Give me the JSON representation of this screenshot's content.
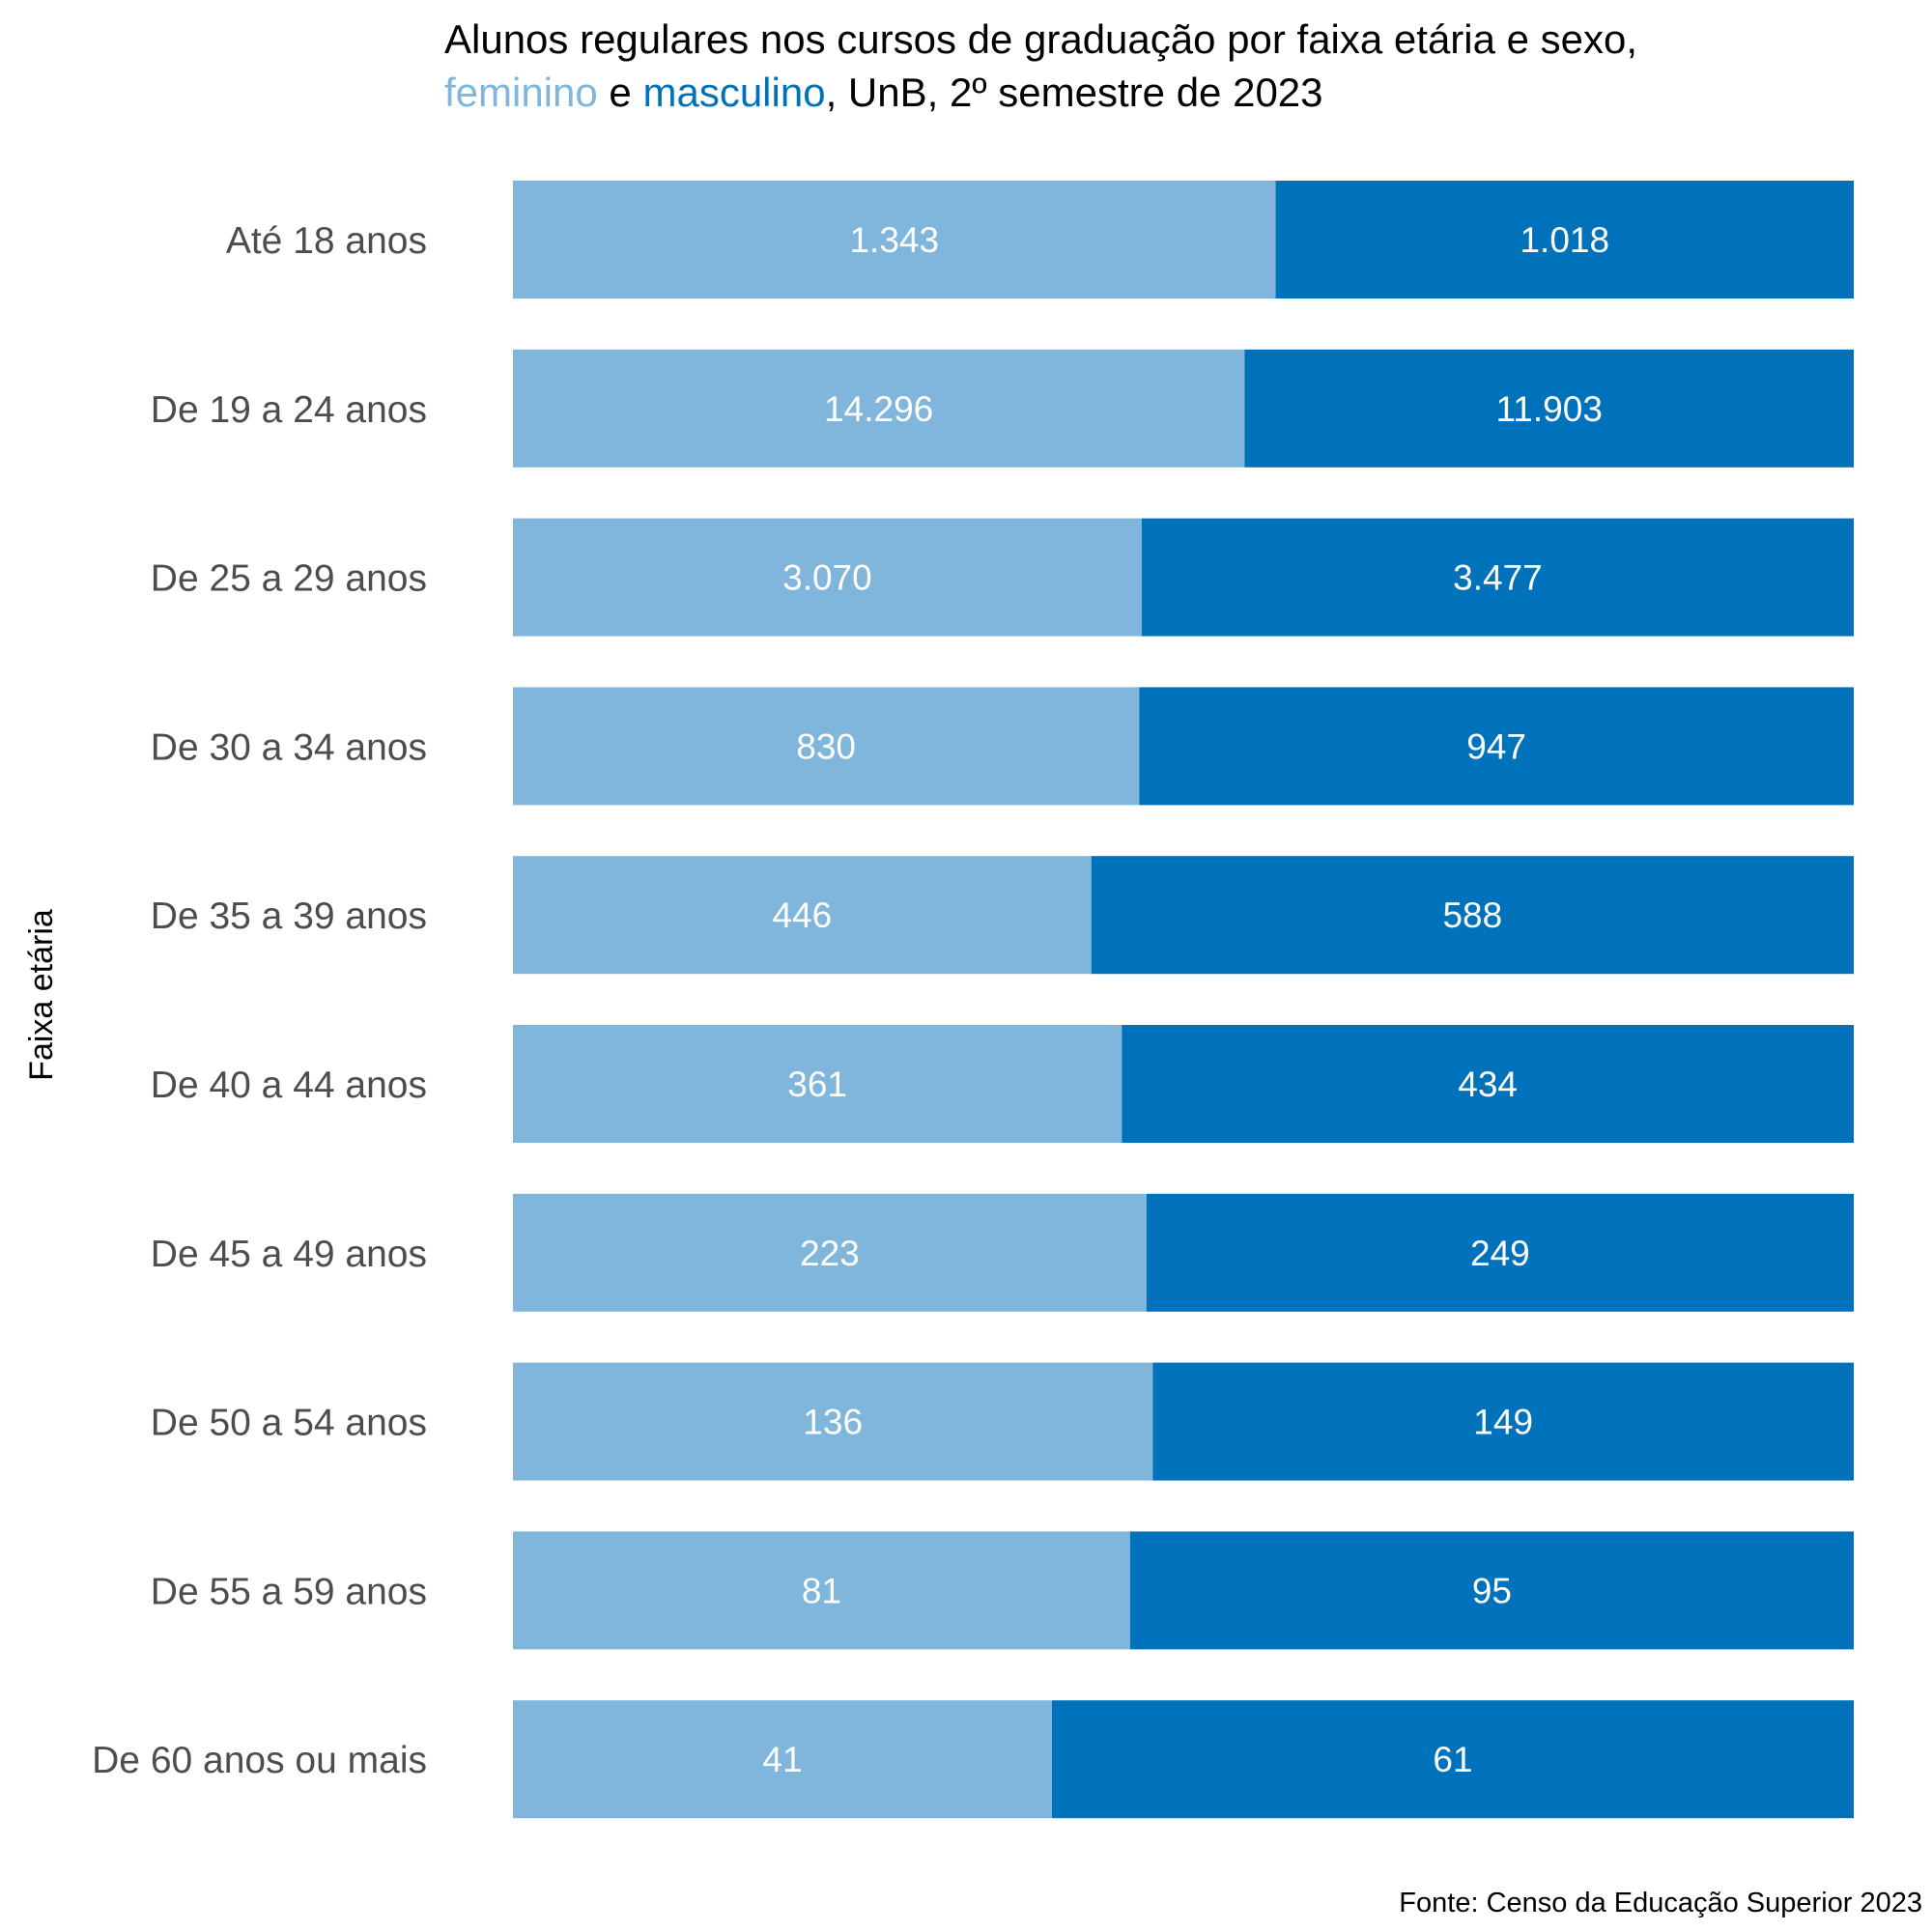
{
  "colors": {
    "feminino": "#80b6dc",
    "masculino": "#0072bc",
    "title": "#000000",
    "category_text": "#4d4d4d",
    "value_text": "#ffffff"
  },
  "chart_data": {
    "type": "bar",
    "orientation": "horizontal",
    "stacking": "percent",
    "title_parts": {
      "line1": "Alunos regulares nos cursos de graduação por faixa etária e sexo,",
      "feminino": "feminino",
      "connector": " e ",
      "masculino": "masculino",
      "rest": ", UnB, 2º semestre de 2023"
    },
    "ylabel": "Faixa etária",
    "xlabel": "",
    "caption": "Fonte: Censo da Educação Superior 2023",
    "categories": [
      "Até 18 anos",
      "De 19 a 24 anos",
      "De 25 a 29 anos",
      "De 30 a 34 anos",
      "De 35 a 39 anos",
      "De 40 a 44 anos",
      "De 45 a 49 anos",
      "De 50 a 54 anos",
      "De 55 a 59 anos",
      "De 60 anos ou mais"
    ],
    "series": [
      {
        "name": "feminino",
        "values": [
          1343,
          14296,
          3070,
          830,
          446,
          361,
          223,
          136,
          81,
          41
        ],
        "labels": [
          "1.343",
          "14.296",
          "3.070",
          "830",
          "446",
          "361",
          "223",
          "136",
          "81",
          "41"
        ]
      },
      {
        "name": "masculino",
        "values": [
          1018,
          11903,
          3477,
          947,
          588,
          434,
          249,
          149,
          95,
          61
        ],
        "labels": [
          "1.018",
          "11.903",
          "3.477",
          "947",
          "588",
          "434",
          "249",
          "149",
          "95",
          "61"
        ]
      }
    ]
  }
}
